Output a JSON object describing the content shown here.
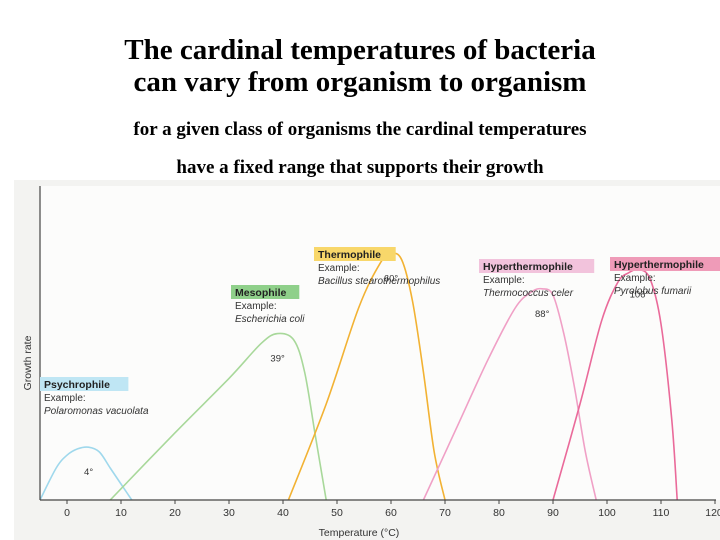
{
  "header": {
    "title_line1": "The cardinal temperatures of bacteria",
    "title_line2": "can vary from organism to organism",
    "subtitle_line1": "for a given class of organisms the cardinal temperatures",
    "subtitle_line2": "have a fixed range that supports their growth"
  },
  "chart_data": {
    "type": "line",
    "xlabel": "Temperature (°C)",
    "ylabel": "Growth rate",
    "xlim": [
      0,
      120
    ],
    "ylim": [
      0,
      1
    ],
    "x_ticks": [
      0,
      10,
      20,
      30,
      40,
      50,
      60,
      70,
      80,
      90,
      100,
      110,
      120
    ],
    "grid": false,
    "series": [
      {
        "name": "Psychrophile",
        "example_label": "Example:",
        "example": "Polaromonas vacuolata",
        "optimum_label": "4°",
        "color": "#9fd8ec",
        "label_bg": "#bfe6f4",
        "x": [
          -5,
          -2,
          0,
          2,
          4,
          6,
          8,
          10,
          12
        ],
        "y": [
          0.0,
          0.1,
          0.14,
          0.16,
          0.165,
          0.15,
          0.1,
          0.05,
          0.0
        ]
      },
      {
        "name": "Mesophile",
        "example_label": "Example:",
        "example": "Escherichia coli",
        "optimum_label": "39°",
        "color": "#a8d89a",
        "label_bg": "#8fd08a",
        "x": [
          8,
          20,
          30,
          36,
          39,
          42,
          44,
          46,
          48
        ],
        "y": [
          0.0,
          0.21,
          0.38,
          0.49,
          0.52,
          0.5,
          0.4,
          0.2,
          0.0
        ]
      },
      {
        "name": "Thermophile",
        "example_label": "Example:",
        "example": "Bacillus stearothermophilus",
        "optimum_label": "60°",
        "color": "#f2b233",
        "label_bg": "#f8d76a",
        "x": [
          41,
          48,
          54,
          58,
          60,
          62,
          64,
          66,
          68,
          70
        ],
        "y": [
          0.0,
          0.3,
          0.6,
          0.74,
          0.77,
          0.75,
          0.62,
          0.4,
          0.15,
          0.0
        ]
      },
      {
        "name": "Hyperthermophile",
        "example_label": "Example:",
        "example": "Thermococcus celer",
        "optimum_label": "88°",
        "color": "#f0a0c6",
        "label_bg": "#f2c3dc",
        "x": [
          66,
          72,
          78,
          83,
          86,
          88,
          90,
          92,
          94,
          96,
          98
        ],
        "y": [
          0.0,
          0.22,
          0.44,
          0.6,
          0.65,
          0.66,
          0.64,
          0.52,
          0.35,
          0.15,
          0.0
        ]
      },
      {
        "name": "Hyperthermophile",
        "example_label": "Example:",
        "example": "Pyrolobus fumarii",
        "optimum_label": "106°",
        "color": "#ea6a9a",
        "label_bg": "#ef9bb8",
        "x": [
          90,
          95,
          99,
          102,
          104,
          106,
          108,
          110,
          112,
          113
        ],
        "y": [
          0.0,
          0.3,
          0.56,
          0.68,
          0.71,
          0.72,
          0.69,
          0.55,
          0.25,
          0.0
        ]
      }
    ]
  }
}
